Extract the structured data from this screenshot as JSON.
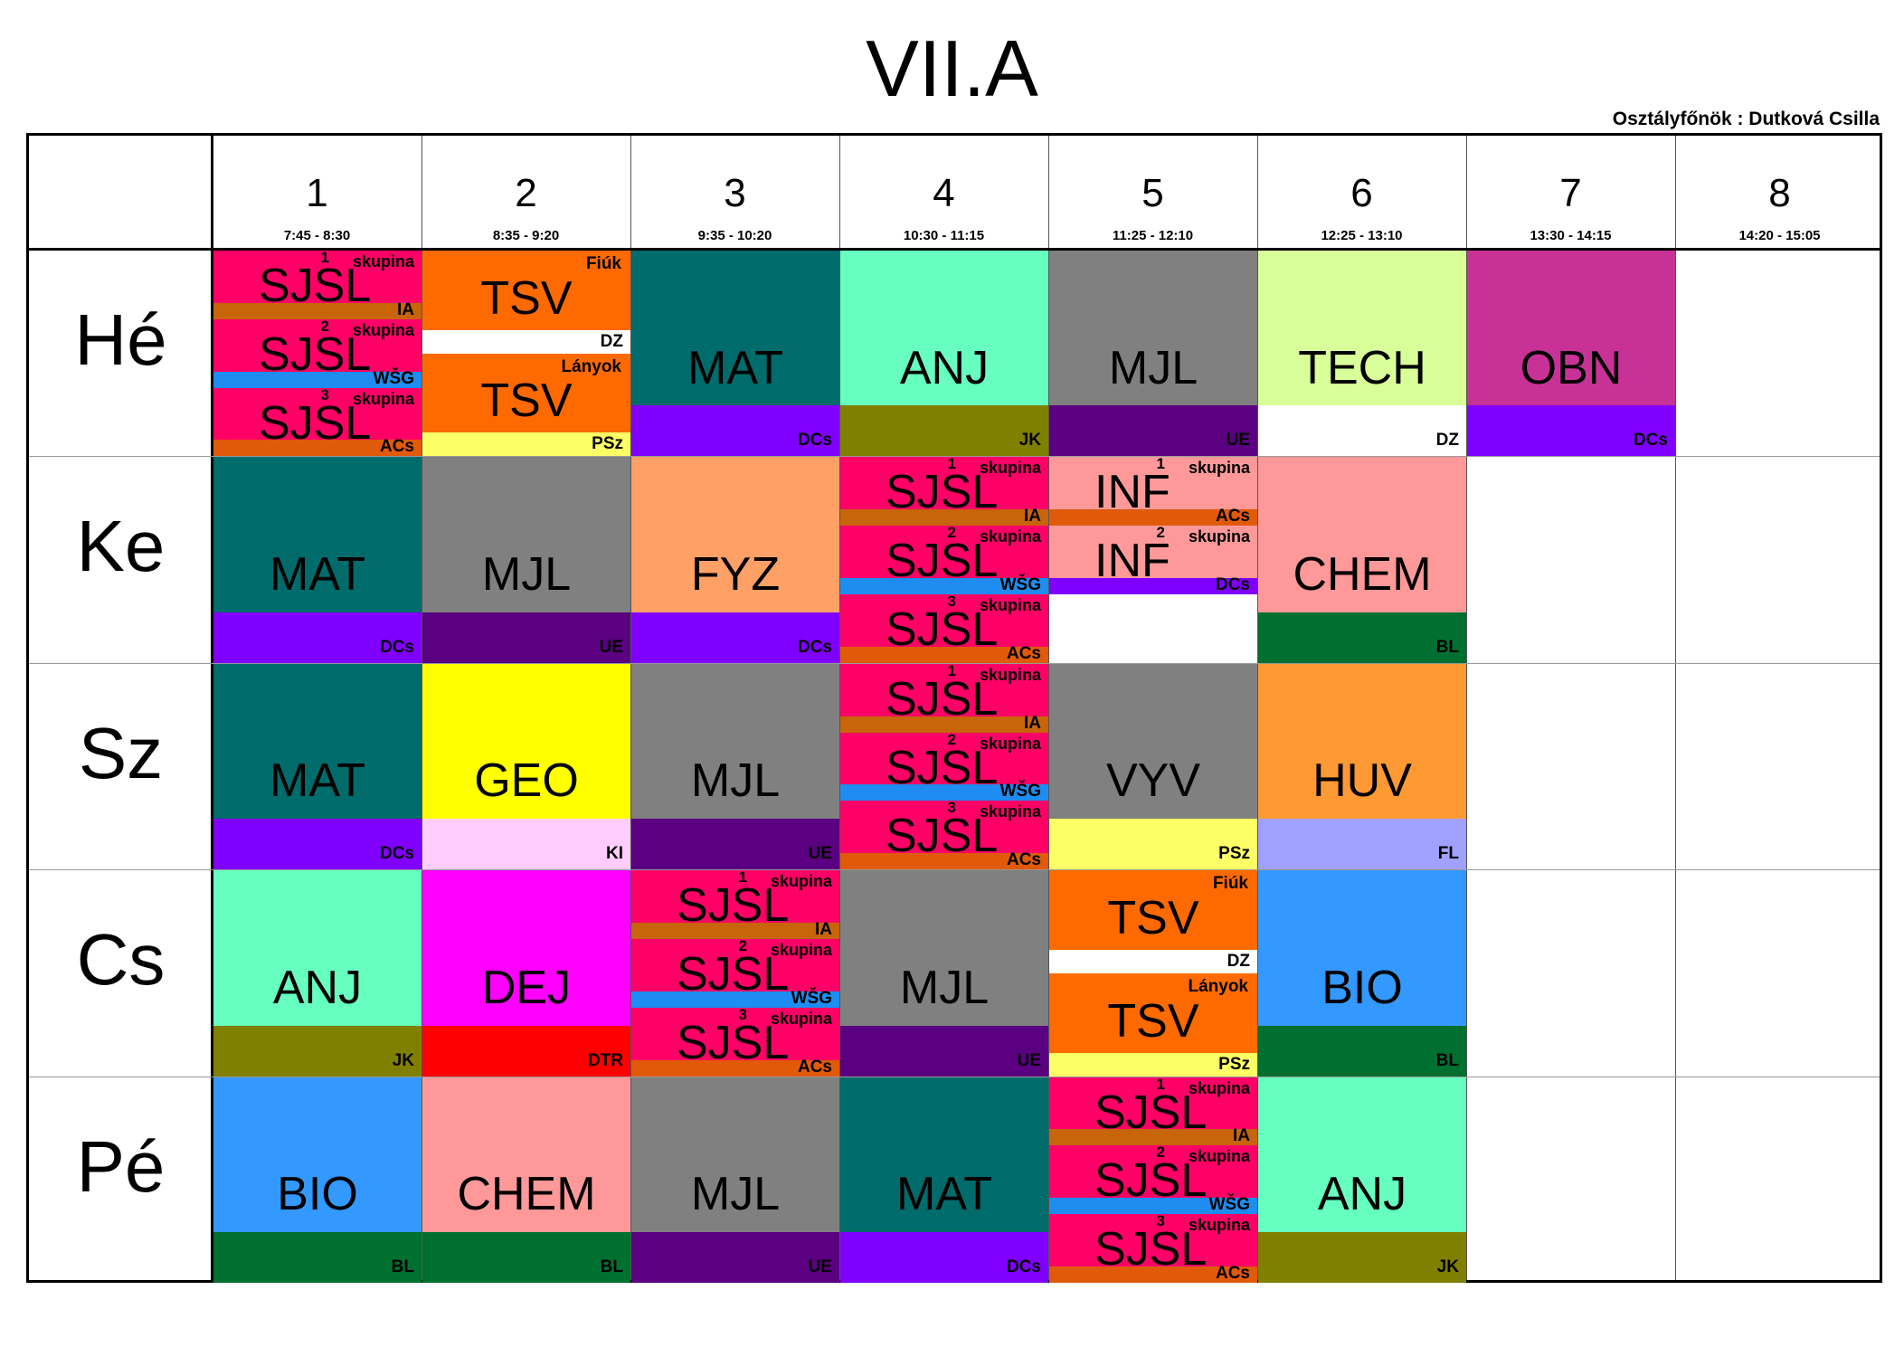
{
  "title": "VII.A",
  "teacher_label": "Osztályfőnök : Dutková Csilla",
  "periods": [
    {
      "num": "1",
      "time": "7:45 - 8:30"
    },
    {
      "num": "2",
      "time": "8:35 - 9:20"
    },
    {
      "num": "3",
      "time": "9:35 - 10:20"
    },
    {
      "num": "4",
      "time": "10:30 - 11:15"
    },
    {
      "num": "5",
      "time": "11:25 - 12:10"
    },
    {
      "num": "6",
      "time": "12:25 - 13:10"
    },
    {
      "num": "7",
      "time": "13:30 - 14:15"
    },
    {
      "num": "8",
      "time": "14:20 - 15:05"
    }
  ],
  "days": [
    "Hé",
    "Ke",
    "Sz",
    "Cs",
    "Pé"
  ],
  "lessons": [
    {
      "day": 0,
      "period": 0,
      "kind": "groups",
      "groups": [
        {
          "num": "1",
          "group": "skupina",
          "subject": "SJSL",
          "teacher": "IA",
          "color": "#ff0066",
          "bar": "#c8640a"
        },
        {
          "num": "2",
          "group": "skupina",
          "subject": "SJSL",
          "teacher": "WŠG",
          "color": "#ff0066",
          "bar": "#1e8cf0"
        },
        {
          "num": "3",
          "group": "skupina",
          "subject": "SJSL",
          "teacher": "ACs",
          "color": "#ff0066",
          "bar": "#e05a0a"
        }
      ]
    },
    {
      "day": 0,
      "period": 1,
      "kind": "split",
      "parts": [
        {
          "label": "Fiúk",
          "subject": "TSV",
          "teacher": "DZ",
          "color": "#ff6a00",
          "bar": "#ffffff"
        },
        {
          "label": "Lányok",
          "subject": "TSV",
          "teacher": "PSz",
          "color": "#ff6a00",
          "bar": "#ffff66"
        }
      ]
    },
    {
      "day": 0,
      "period": 2,
      "subject": "MAT",
      "teacher": "DCs",
      "color": "#006b6b",
      "bar": "#8000ff"
    },
    {
      "day": 0,
      "period": 3,
      "subject": "ANJ",
      "teacher": "JK",
      "color": "#66ffc0",
      "bar": "#808000"
    },
    {
      "day": 0,
      "period": 4,
      "subject": "MJL",
      "teacher": "UE",
      "color": "#808080",
      "bar": "#5a0080"
    },
    {
      "day": 0,
      "period": 5,
      "subject": "TECH",
      "teacher": "DZ",
      "color": "#d8ff99",
      "bar": "#ffffff"
    },
    {
      "day": 0,
      "period": 6,
      "subject": "OBN",
      "teacher": "DCs",
      "color": "#c83296",
      "bar": "#8000ff"
    },
    {
      "day": 1,
      "period": 0,
      "subject": "MAT",
      "teacher": "DCs",
      "color": "#006b6b",
      "bar": "#8000ff"
    },
    {
      "day": 1,
      "period": 1,
      "subject": "MJL",
      "teacher": "UE",
      "color": "#808080",
      "bar": "#5a0080"
    },
    {
      "day": 1,
      "period": 2,
      "subject": "FYZ",
      "teacher": "DCs",
      "color": "#ffa066",
      "bar": "#8000ff"
    },
    {
      "day": 1,
      "period": 3,
      "kind": "groups",
      "groups": [
        {
          "num": "1",
          "group": "skupina",
          "subject": "SJSL",
          "teacher": "IA",
          "color": "#ff0066",
          "bar": "#c8640a"
        },
        {
          "num": "2",
          "group": "skupina",
          "subject": "SJSL",
          "teacher": "WŠG",
          "color": "#ff0066",
          "bar": "#1e8cf0"
        },
        {
          "num": "3",
          "group": "skupina",
          "subject": "SJSL",
          "teacher": "ACs",
          "color": "#ff0066",
          "bar": "#e05a0a"
        }
      ]
    },
    {
      "day": 1,
      "period": 4,
      "kind": "groups",
      "groups": [
        {
          "num": "1",
          "group": "skupina",
          "subject": "INF",
          "teacher": "ACs",
          "color": "#ff9999",
          "bar": "#e05a0a"
        },
        {
          "num": "2",
          "group": "skupina",
          "subject": "INF",
          "teacher": "DCs",
          "color": "#ff9999",
          "bar": "#8000ff"
        },
        {
          "num": "",
          "group": "",
          "subject": "",
          "teacher": "",
          "color": "#ffffff",
          "bar": "#ffffff"
        }
      ]
    },
    {
      "day": 1,
      "period": 5,
      "subject": "CHEM",
      "teacher": "BL",
      "color": "#ff9999",
      "bar": "#007030"
    },
    {
      "day": 2,
      "period": 0,
      "subject": "MAT",
      "teacher": "DCs",
      "color": "#006b6b",
      "bar": "#8000ff"
    },
    {
      "day": 2,
      "period": 1,
      "subject": "GEO",
      "teacher": "KI",
      "color": "#ffff00",
      "bar": "#ffccff"
    },
    {
      "day": 2,
      "period": 2,
      "subject": "MJL",
      "teacher": "UE",
      "color": "#808080",
      "bar": "#5a0080"
    },
    {
      "day": 2,
      "period": 3,
      "kind": "groups",
      "groups": [
        {
          "num": "1",
          "group": "skupina",
          "subject": "SJSL",
          "teacher": "IA",
          "color": "#ff0066",
          "bar": "#c8640a"
        },
        {
          "num": "2",
          "group": "skupina",
          "subject": "SJSL",
          "teacher": "WŠG",
          "color": "#ff0066",
          "bar": "#1e8cf0"
        },
        {
          "num": "3",
          "group": "skupina",
          "subject": "SJSL",
          "teacher": "ACs",
          "color": "#ff0066",
          "bar": "#e05a0a"
        }
      ]
    },
    {
      "day": 2,
      "period": 4,
      "subject": "VYV",
      "teacher": "PSz",
      "color": "#808080",
      "bar": "#ffff66"
    },
    {
      "day": 2,
      "period": 5,
      "subject": "HUV",
      "teacher": "FL",
      "color": "#ff9933",
      "bar": "#a0a0ff"
    },
    {
      "day": 3,
      "period": 0,
      "subject": "ANJ",
      "teacher": "JK",
      "color": "#66ffc0",
      "bar": "#808000"
    },
    {
      "day": 3,
      "period": 1,
      "subject": "DEJ",
      "teacher": "DTR",
      "color": "#ff00ff",
      "bar": "#ff0000"
    },
    {
      "day": 3,
      "period": 2,
      "kind": "groups",
      "groups": [
        {
          "num": "1",
          "group": "skupina",
          "subject": "SJSL",
          "teacher": "IA",
          "color": "#ff0066",
          "bar": "#c8640a"
        },
        {
          "num": "2",
          "group": "skupina",
          "subject": "SJSL",
          "teacher": "WŠG",
          "color": "#ff0066",
          "bar": "#1e8cf0"
        },
        {
          "num": "3",
          "group": "skupina",
          "subject": "SJSL",
          "teacher": "ACs",
          "color": "#ff0066",
          "bar": "#e05a0a"
        }
      ]
    },
    {
      "day": 3,
      "period": 3,
      "subject": "MJL",
      "teacher": "UE",
      "color": "#808080",
      "bar": "#5a0080"
    },
    {
      "day": 3,
      "period": 4,
      "kind": "split",
      "parts": [
        {
          "label": "Fiúk",
          "subject": "TSV",
          "teacher": "DZ",
          "color": "#ff6a00",
          "bar": "#ffffff"
        },
        {
          "label": "Lányok",
          "subject": "TSV",
          "teacher": "PSz",
          "color": "#ff6a00",
          "bar": "#ffff66"
        }
      ]
    },
    {
      "day": 3,
      "period": 5,
      "subject": "BIO",
      "teacher": "BL",
      "color": "#3399ff",
      "bar": "#007030"
    },
    {
      "day": 4,
      "period": 0,
      "subject": "BIO",
      "teacher": "BL",
      "color": "#3399ff",
      "bar": "#007030"
    },
    {
      "day": 4,
      "period": 1,
      "subject": "CHEM",
      "teacher": "BL",
      "color": "#ff9999",
      "bar": "#007030"
    },
    {
      "day": 4,
      "period": 2,
      "subject": "MJL",
      "teacher": "UE",
      "color": "#808080",
      "bar": "#5a0080"
    },
    {
      "day": 4,
      "period": 3,
      "subject": "MAT",
      "teacher": "DCs",
      "color": "#006b6b",
      "bar": "#8000ff"
    },
    {
      "day": 4,
      "period": 4,
      "kind": "groups",
      "groups": [
        {
          "num": "1",
          "group": "skupina",
          "subject": "SJSL",
          "teacher": "IA",
          "color": "#ff0066",
          "bar": "#c8640a"
        },
        {
          "num": "2",
          "group": "skupina",
          "subject": "SJSL",
          "teacher": "WŠG",
          "color": "#ff0066",
          "bar": "#1e8cf0"
        },
        {
          "num": "3",
          "group": "skupina",
          "subject": "SJSL",
          "teacher": "ACs",
          "color": "#ff0066",
          "bar": "#e05a0a"
        }
      ]
    },
    {
      "day": 4,
      "period": 5,
      "subject": "ANJ",
      "teacher": "JK",
      "color": "#66ffc0",
      "bar": "#808000"
    }
  ]
}
